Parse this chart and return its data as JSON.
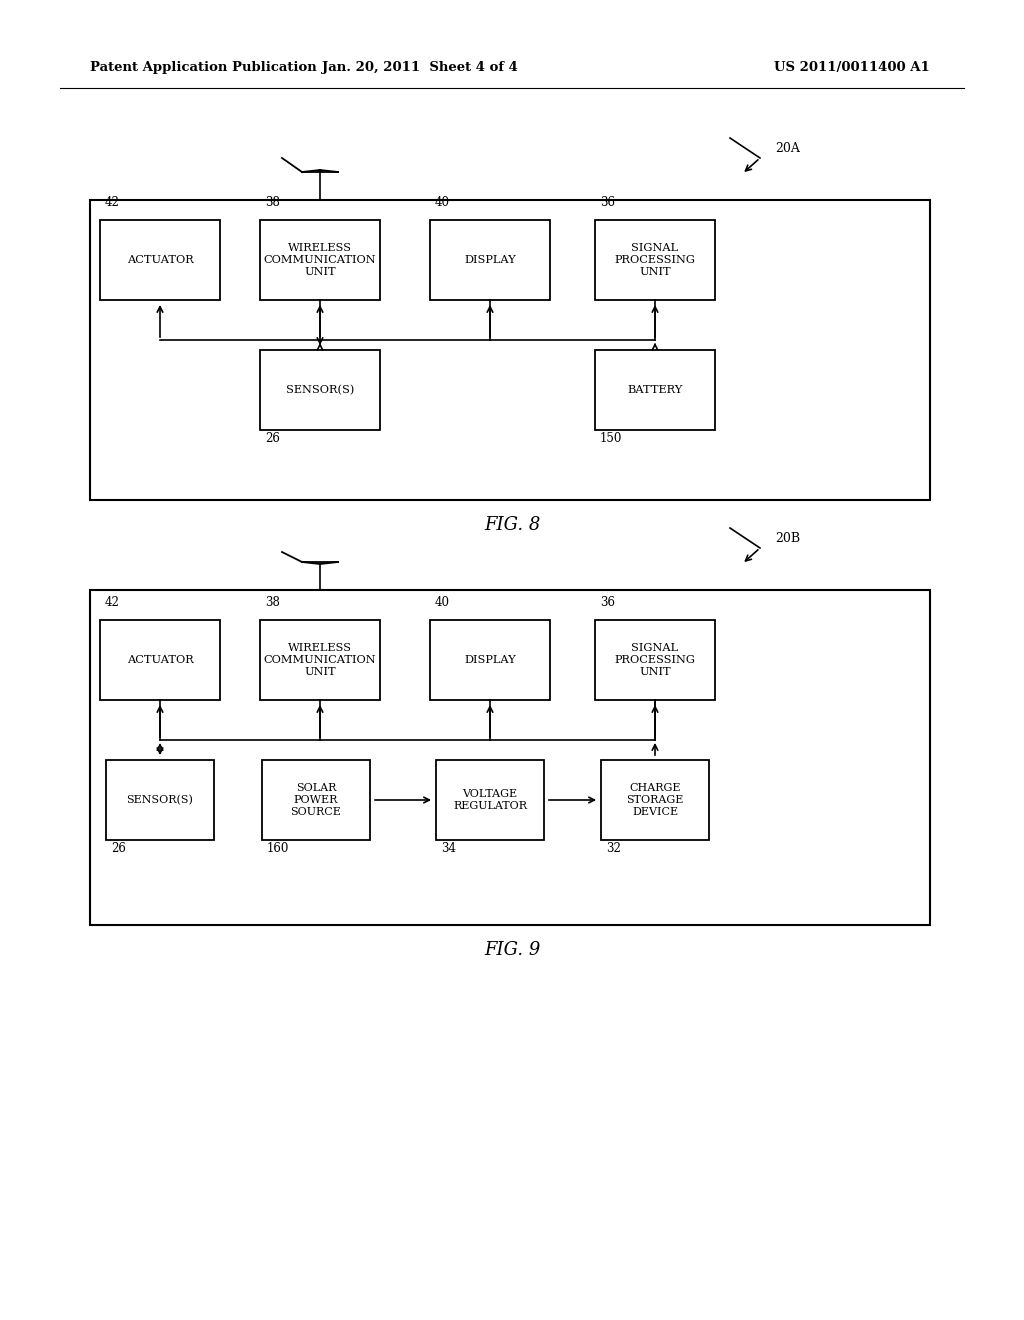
{
  "bg_color": "#ffffff",
  "header_left": "Patent Application Publication",
  "header_mid": "Jan. 20, 2011  Sheet 4 of 4",
  "header_right": "US 2011/0011400 A1",
  "fig8_label": "FIG. 8",
  "fig9_label": "FIG. 9",
  "fig8_ref": "20A",
  "fig9_ref": "20B"
}
